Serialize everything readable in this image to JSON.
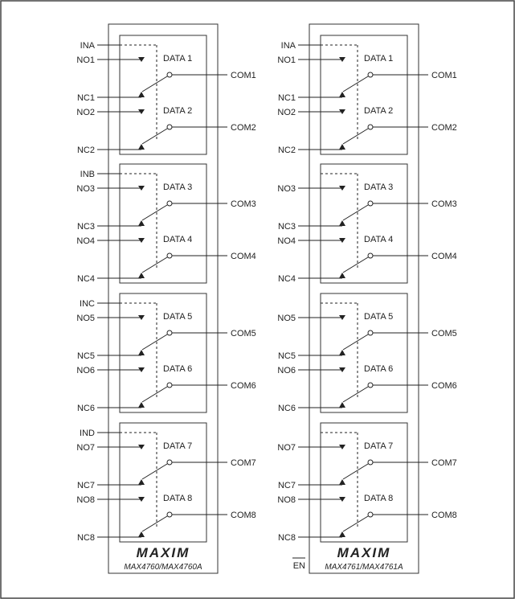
{
  "chips": [
    {
      "part_label": "MAX4760/MAX4760A",
      "logo": "MAXIM",
      "enable_label": "",
      "blocks": [
        {
          "control_label": "INA",
          "switches": [
            {
              "no": "NO1",
              "nc": "NC1",
              "com": "COM1",
              "data": "DATA 1"
            },
            {
              "no": "NO2",
              "nc": "NC2",
              "com": "COM2",
              "data": "DATA 2"
            }
          ]
        },
        {
          "control_label": "INB",
          "switches": [
            {
              "no": "NO3",
              "nc": "NC3",
              "com": "COM3",
              "data": "DATA 3"
            },
            {
              "no": "NO4",
              "nc": "NC4",
              "com": "COM4",
              "data": "DATA 4"
            }
          ]
        },
        {
          "control_label": "INC",
          "switches": [
            {
              "no": "NO5",
              "nc": "NC5",
              "com": "COM5",
              "data": "DATA 5"
            },
            {
              "no": "NO6",
              "nc": "NC6",
              "com": "COM6",
              "data": "DATA 6"
            }
          ]
        },
        {
          "control_label": "IND",
          "switches": [
            {
              "no": "NO7",
              "nc": "NC7",
              "com": "COM7",
              "data": "DATA 7"
            },
            {
              "no": "NO8",
              "nc": "NC8",
              "com": "COM8",
              "data": "DATA 8"
            }
          ]
        }
      ]
    },
    {
      "part_label": "MAX4761/MAX4761A",
      "logo": "MAXIM",
      "enable_label": "EN",
      "blocks": [
        {
          "control_label": "INA",
          "switches": [
            {
              "no": "NO1",
              "nc": "NC1",
              "com": "COM1",
              "data": "DATA 1"
            },
            {
              "no": "NO2",
              "nc": "NC2",
              "com": "COM2",
              "data": "DATA 2"
            }
          ]
        },
        {
          "control_label": "",
          "switches": [
            {
              "no": "NO3",
              "nc": "NC3",
              "com": "COM3",
              "data": "DATA 3"
            },
            {
              "no": "NO4",
              "nc": "NC4",
              "com": "COM4",
              "data": "DATA 4"
            }
          ]
        },
        {
          "control_label": "",
          "switches": [
            {
              "no": "NO5",
              "nc": "NC5",
              "com": "COM5",
              "data": "DATA 5"
            },
            {
              "no": "NO6",
              "nc": "NC6",
              "com": "COM6",
              "data": "DATA 6"
            }
          ]
        },
        {
          "control_label": "",
          "switches": [
            {
              "no": "NO7",
              "nc": "NC7",
              "com": "COM7",
              "data": "DATA 7"
            },
            {
              "no": "NO8",
              "nc": "NC8",
              "com": "COM8",
              "data": "DATA 8"
            }
          ]
        }
      ]
    }
  ]
}
